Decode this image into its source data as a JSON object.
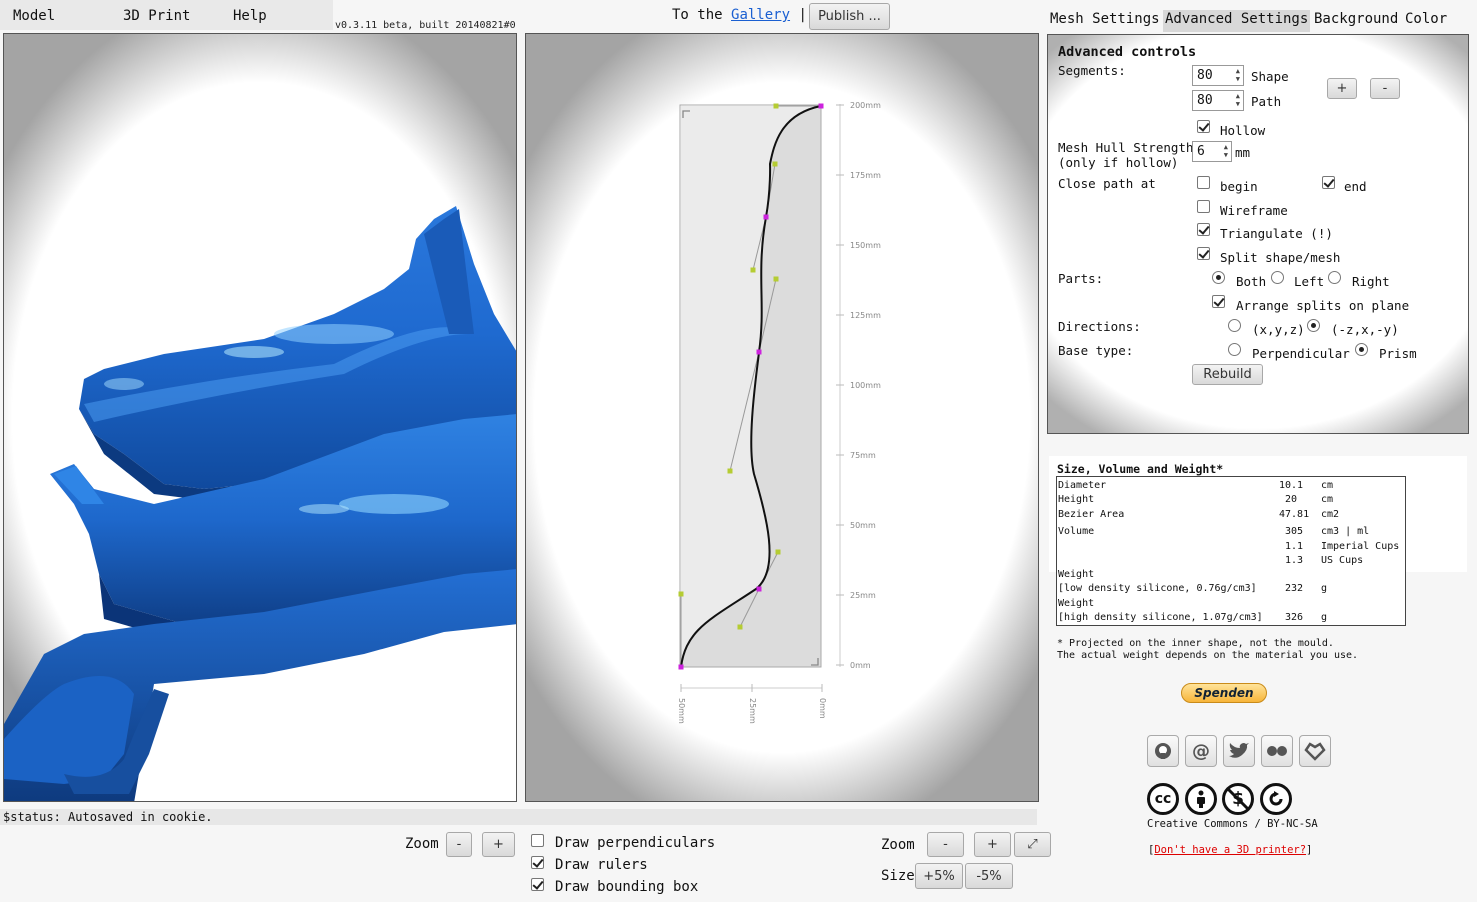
{
  "menu": {
    "items": [
      "Model",
      "3D Print",
      "Help"
    ]
  },
  "version": "v0.3.11 beta, built 20140821#0",
  "gallery": {
    "prefix": "To the",
    "link": "Gallery",
    "sep": "|",
    "publish": "Publish ..."
  },
  "tabs": [
    "Mesh Settings",
    "Advanced Settings",
    "Background",
    "Color"
  ],
  "active_tab": "Advanced Settings",
  "advanced": {
    "title": "Advanced controls",
    "segments_label": "Segments:",
    "shape_value": "80",
    "shape_label": "Shape",
    "path_value": "80",
    "path_label": "Path",
    "plus": "+",
    "minus": "-",
    "hollow_label": "Hollow",
    "hollow": true,
    "hull_label": "Mesh Hull Strength:",
    "hull_sub": "(only if hollow)",
    "hull_value": "6",
    "hull_unit": "mm",
    "close_label": "Close path at",
    "begin_label": "begin",
    "begin": false,
    "end_label": "end",
    "end": true,
    "wireframe_label": "Wireframe",
    "wireframe": false,
    "triangulate_label": "Triangulate (!)",
    "triangulate": true,
    "split_label": "Split shape/mesh",
    "split": true,
    "parts_label": "Parts:",
    "both": "Both",
    "left": "Left",
    "right": "Right",
    "parts_selected": "Both",
    "arrange_label": "Arrange splits on plane",
    "arrange": true,
    "directions_label": "Directions:",
    "dir1": "(x,y,z)",
    "dir2": "(-z,x,-y)",
    "dir_selected": "(-z,x,-y)",
    "base_label": "Base type:",
    "base1": "Perpendicular",
    "base2": "Prism",
    "base_selected": "Prism",
    "rebuild": "Rebuild"
  },
  "stats": {
    "title": "Size, Volume and Weight*",
    "rows": [
      {
        "label": "Diameter",
        "value": "10.1",
        "unit": "cm"
      },
      {
        "label": "Height",
        "value": "20",
        "unit": "cm"
      },
      {
        "label": "Bezier Area",
        "value": "47.81",
        "unit": "cm2"
      },
      {
        "label": "Volume",
        "value": "305",
        "unit": "cm3 | ml"
      },
      {
        "label": "",
        "value": "1.1",
        "unit": "Imperial Cups"
      },
      {
        "label": "",
        "value": "1.3",
        "unit": "US Cups"
      },
      {
        "label": "Weight",
        "value": "",
        "unit": ""
      },
      {
        "label": " [low density silicone, 0.76g/cm3]",
        "value": "232",
        "unit": "g"
      },
      {
        "label": "Weight",
        "value": "",
        "unit": ""
      },
      {
        "label": " [high density silicone, 1.07g/cm3]",
        "value": "326",
        "unit": "g"
      }
    ],
    "note1": "* Projected on the inner shape, not the mould.",
    "note2": "The actual weight depends on the material you use."
  },
  "donate": "Spenden",
  "social_icons": [
    "github-icon",
    "email-icon",
    "twitter-icon",
    "flickr-icon",
    "heart-icon"
  ],
  "license": {
    "text": "Creative Commons / BY-NC-SA",
    "link": "Don't have a 3D printer?",
    "open": "[",
    "close": "]"
  },
  "status": "$status: Autosaved in cookie.",
  "left_controls": {
    "zoom": "Zoom",
    "minus": "-",
    "plus": "+"
  },
  "draw_options": [
    {
      "label": "Draw perpendiculars",
      "checked": false
    },
    {
      "label": "Draw rulers",
      "checked": true
    },
    {
      "label": "Draw bounding box",
      "checked": true
    }
  ],
  "right_controls": {
    "zoom": "Zoom",
    "minus": "-",
    "plus": "+",
    "fit": "⤢",
    "size": "Size",
    "inc": "+5%",
    "dec": "-5%"
  },
  "ruler_y": [
    "200mm",
    "175mm",
    "150mm",
    "125mm",
    "100mm",
    "75mm",
    "50mm",
    "25mm",
    "0mm"
  ],
  "ruler_x": [
    "50mm",
    "25mm",
    "0mm"
  ],
  "colors": {
    "model": "#1f6fd6",
    "curve": "#111111",
    "handle": "#b5cc33",
    "anchor": "#cc22dd",
    "link": "#1a5fd1"
  }
}
